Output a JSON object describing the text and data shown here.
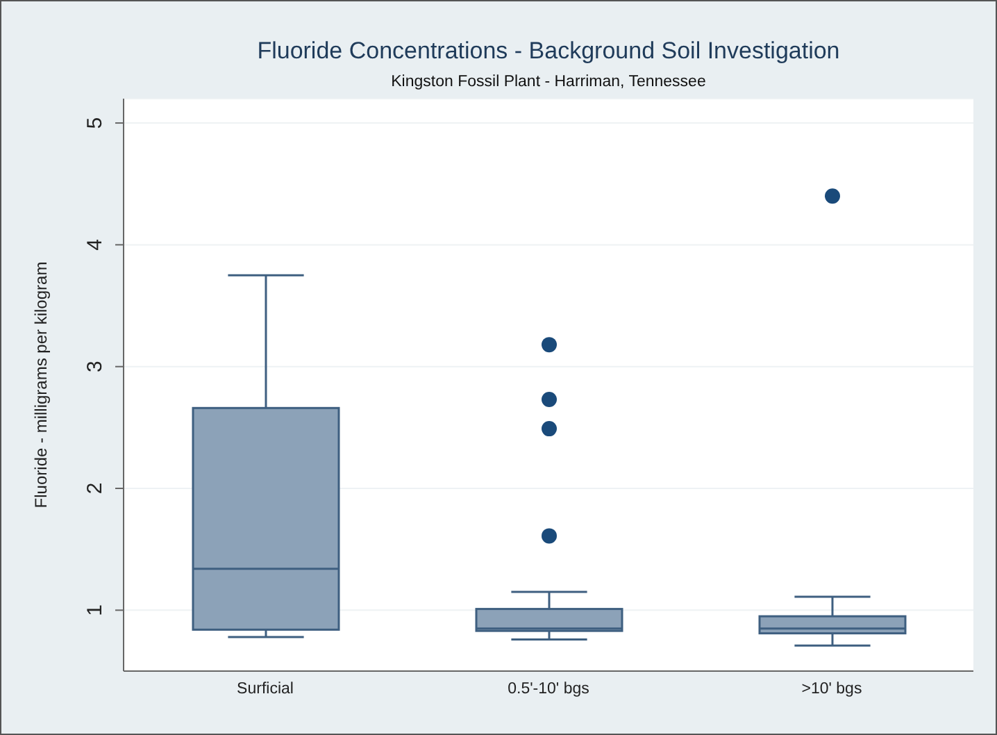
{
  "chart_data": {
    "type": "box",
    "title": "Fluoride Concentrations - Background Soil Investigation",
    "subtitle": "Kingston Fossil Plant - Harriman, Tennessee",
    "ylabel": "Fluoride - milligrams per kilogram",
    "categories": [
      "Surficial",
      "0.5'-10' bgs",
      ">10' bgs"
    ],
    "series": [
      {
        "color": "#8ca2b8",
        "boxes": [
          {
            "low": 0.78,
            "q1": 0.84,
            "median": 1.34,
            "q3": 2.66,
            "high": 3.75
          },
          {
            "low": 0.76,
            "q1": 0.83,
            "median": 0.85,
            "q3": 1.01,
            "high": 1.15,
            "outliers": [
              3.18,
              2.73,
              2.49,
              1.61
            ]
          },
          {
            "low": 0.71,
            "q1": 0.81,
            "median": 0.85,
            "q3": 0.95,
            "high": 1.11,
            "outliers": [
              4.4
            ]
          }
        ]
      }
    ],
    "ylim": [
      0.5,
      5.2
    ],
    "yticks": [
      1,
      2,
      3,
      4,
      5
    ],
    "grid": "y"
  }
}
